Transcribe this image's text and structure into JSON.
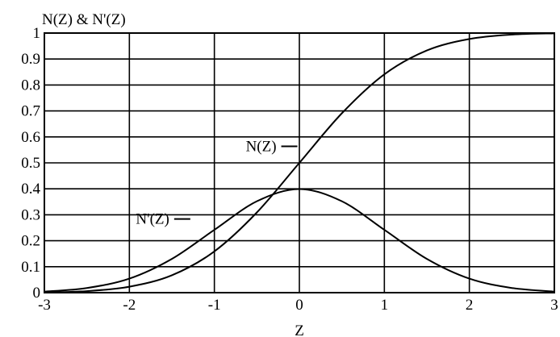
{
  "chart_data": {
    "type": "line",
    "title": "N(Z) & N'(Z)",
    "xlabel": "Z",
    "ylabel": "",
    "xlim": [
      -3,
      3
    ],
    "ylim": [
      0,
      1
    ],
    "x_ticks": [
      -3,
      -2,
      -1,
      0,
      1,
      2,
      3
    ],
    "x_tick_labels": [
      "-3",
      "-2",
      "-1",
      "0",
      "1",
      "2",
      "3"
    ],
    "y_ticks": [
      0,
      0.1,
      0.2,
      0.3,
      0.4,
      0.5,
      0.6,
      0.7,
      0.8,
      0.9,
      1
    ],
    "y_tick_labels": [
      "0",
      "0.1",
      "0.2",
      "0.3",
      "0.4",
      "0.5",
      "0.6",
      "0.7",
      "0.8",
      "0.9",
      "1"
    ],
    "grid": true,
    "series": [
      {
        "name": "N(Z)",
        "x": [
          -3,
          -2.5,
          -2,
          -1.5,
          -1,
          -0.5,
          0,
          0.5,
          1,
          1.5,
          2,
          2.5,
          3
        ],
        "y": [
          0.001,
          0.006,
          0.023,
          0.067,
          0.159,
          0.309,
          0.5,
          0.691,
          0.841,
          0.933,
          0.977,
          0.994,
          0.999
        ]
      },
      {
        "name": "N'(Z)",
        "x": [
          -3,
          -2.5,
          -2,
          -1.5,
          -1,
          -0.5,
          0,
          0.5,
          1,
          1.5,
          2,
          2.5,
          3
        ],
        "y": [
          0.004,
          0.018,
          0.054,
          0.13,
          0.242,
          0.352,
          0.399,
          0.352,
          0.242,
          0.13,
          0.054,
          0.018,
          0.004
        ]
      }
    ],
    "annotations": [
      {
        "text": "N(Z)",
        "x": -0.27,
        "y": 0.545
      },
      {
        "text": "N'(Z)",
        "x": -1.53,
        "y": 0.265
      }
    ],
    "line_color": "#000000"
  }
}
